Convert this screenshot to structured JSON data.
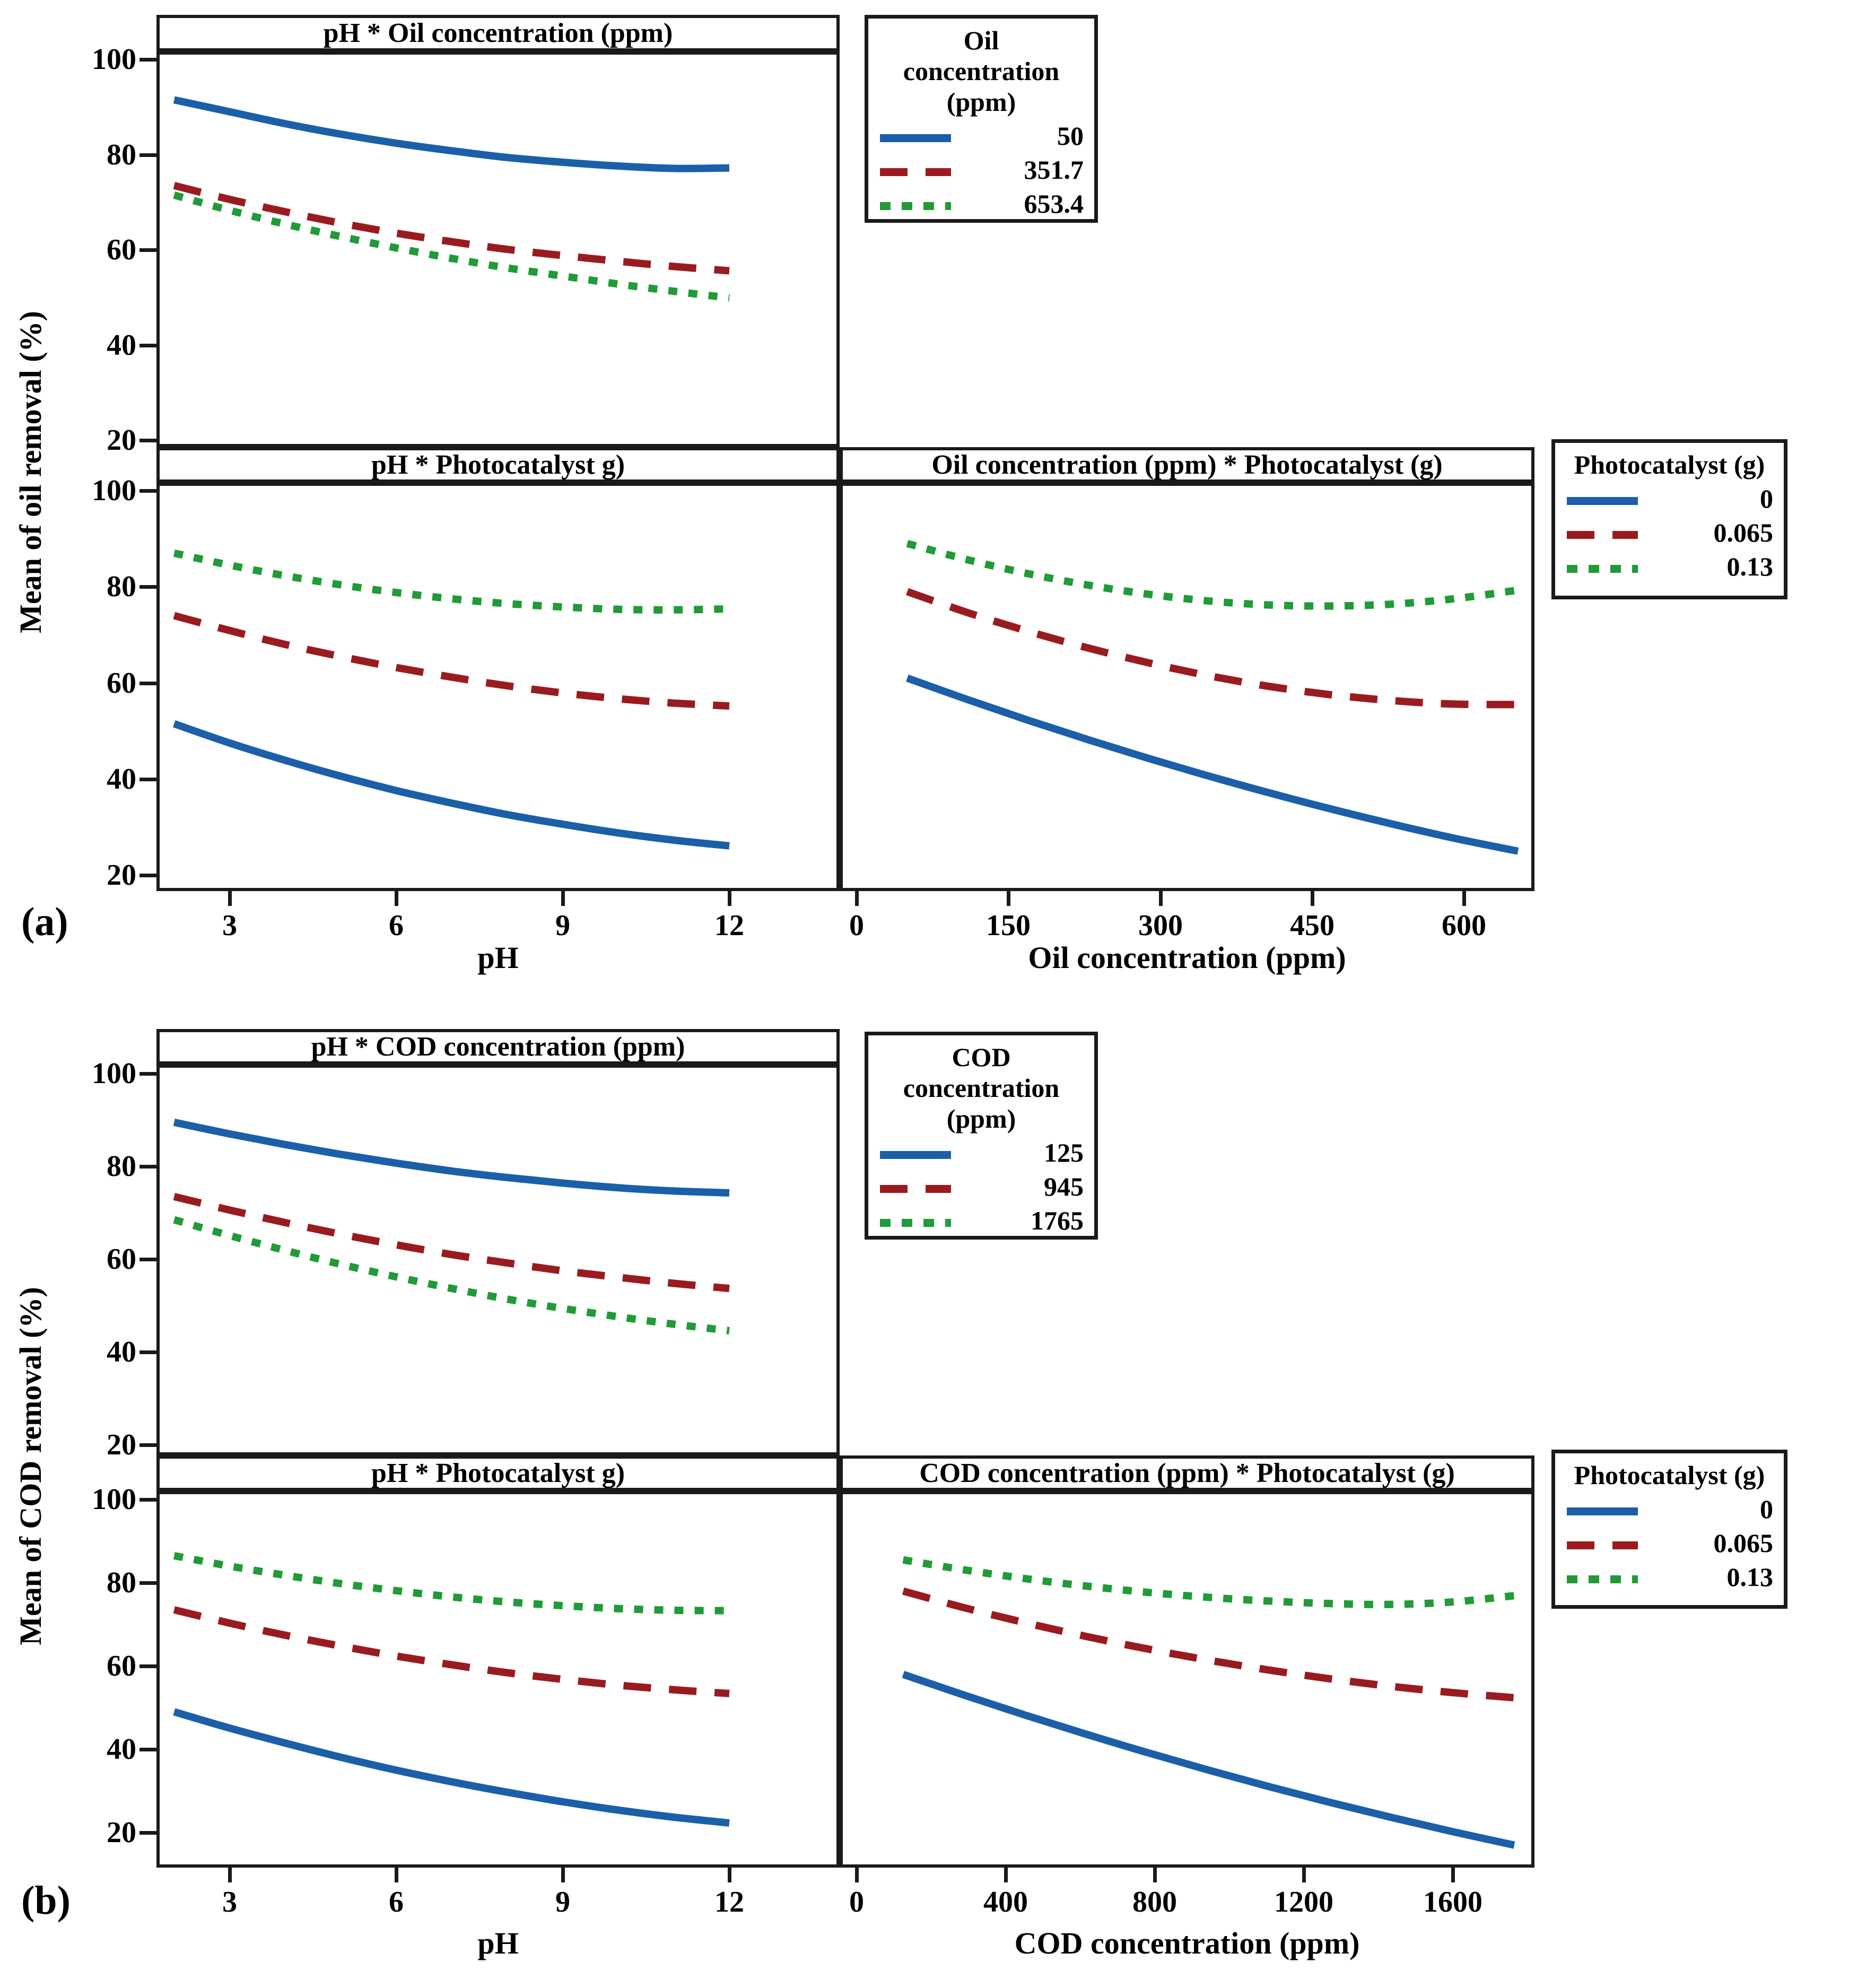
{
  "figures": {
    "a": {
      "label": "(a)",
      "y_label": "Mean of oil removal (%)",
      "x_label_left": "pH",
      "x_label_right": "Oil concentration (ppm)",
      "panel_titles": {
        "top_left": "pH * Oil concentration (ppm)",
        "bottom_left": "pH * Photocatalyst g)",
        "bottom_right": "Oil concentration (ppm) * Photocatalyst (g)"
      },
      "legend_concentration": {
        "title_lines": [
          "Oil",
          "concentration",
          "(ppm)"
        ],
        "entries": [
          "50",
          "351.7",
          "653.4"
        ]
      },
      "legend_photocatalyst": {
        "title": "Photocatalyst (g)",
        "entries": [
          "0",
          "0.065",
          "0.13"
        ]
      }
    },
    "b": {
      "label": "(b)",
      "y_label": "Mean of COD removal (%)",
      "x_label_left": "pH",
      "x_label_right": "COD concentration (ppm)",
      "panel_titles": {
        "top_left": "pH * COD concentration (ppm)",
        "bottom_left": "pH * Photocatalyst g)",
        "bottom_right": "COD concentration (ppm) * Photocatalyst (g)"
      },
      "legend_concentration": {
        "title_lines": [
          "COD",
          "concentration",
          "(ppm)"
        ],
        "entries": [
          "125",
          "945",
          "1765"
        ]
      },
      "legend_photocatalyst": {
        "title": "Photocatalyst (g)",
        "entries": [
          "0",
          "0.065",
          "0.13"
        ]
      }
    }
  },
  "styles": {
    "colors": {
      "blue": "#1b5fa8",
      "red": "#9a1b1f",
      "green": "#219a38"
    },
    "axis_color": "#1a1a1a",
    "background": "#ffffff"
  },
  "chart_data": [
    {
      "id": "a1",
      "figure": "a",
      "position": "top-left",
      "type": "line",
      "title": "pH * Oil concentration (ppm)",
      "xlabel": "pH",
      "ylabel": "Mean of oil removal (%)",
      "legend_title": "Oil concentration (ppm)",
      "grid": false,
      "x_ticks": [
        3,
        6,
        9,
        12
      ],
      "y_ticks": [
        100,
        80,
        60,
        40,
        20
      ],
      "xlim": [
        2,
        12
      ],
      "ylim": [
        20,
        100
      ],
      "x": [
        2,
        3,
        4,
        5,
        6,
        7,
        8,
        9,
        10,
        11,
        12
      ],
      "series": [
        {
          "name": "50",
          "color_key": "blue",
          "style": "solid",
          "values": [
            91.5,
            89,
            86.5,
            84.3,
            82.4,
            80.8,
            79.4,
            78.4,
            77.6,
            77.1,
            77.2
          ]
        },
        {
          "name": "351.7",
          "color_key": "red",
          "style": "dash",
          "values": [
            73.5,
            70.6,
            68,
            65.6,
            63.5,
            61.7,
            60.1,
            58.8,
            57.6,
            56.5,
            55.6
          ]
        },
        {
          "name": "653.4",
          "color_key": "green",
          "style": "dot",
          "values": [
            71.5,
            68.3,
            65.4,
            62.8,
            60.4,
            58.2,
            56.2,
            54.5,
            52.8,
            51.3,
            49.9
          ]
        }
      ]
    },
    {
      "id": "a2",
      "figure": "a",
      "position": "bottom-left",
      "type": "line",
      "title": "pH * Photocatalyst g)",
      "xlabel": "pH",
      "ylabel": "Mean of oil removal (%)",
      "legend_title": "Photocatalyst (g)",
      "grid": false,
      "x_ticks": [
        3,
        6,
        9,
        12
      ],
      "y_ticks": [
        100,
        80,
        60,
        40,
        20
      ],
      "xlim": [
        2,
        12
      ],
      "ylim": [
        20,
        100
      ],
      "x": [
        2,
        3,
        4,
        5,
        6,
        7,
        8,
        9,
        10,
        11,
        12
      ],
      "series": [
        {
          "name": "0",
          "color_key": "blue",
          "style": "solid",
          "values": [
            51.5,
            47.5,
            43.9,
            40.6,
            37.6,
            35,
            32.6,
            30.6,
            28.8,
            27.3,
            26.1
          ]
        },
        {
          "name": "0.065",
          "color_key": "red",
          "style": "dash",
          "values": [
            74,
            70.9,
            68,
            65.5,
            63.2,
            61.2,
            59.4,
            57.9,
            56.7,
            55.8,
            55.2
          ]
        },
        {
          "name": "0.13",
          "color_key": "green",
          "style": "dot",
          "values": [
            87,
            84.5,
            82.3,
            80.4,
            78.8,
            77.5,
            76.5,
            75.8,
            75.3,
            75.2,
            75.4
          ]
        }
      ]
    },
    {
      "id": "a3",
      "figure": "a",
      "position": "bottom-right",
      "type": "line",
      "title": "Oil concentration (ppm) * Photocatalyst (g)",
      "xlabel": "Oil concentration (ppm)",
      "ylabel": "Mean of oil removal (%)",
      "legend_title": "Photocatalyst (g)",
      "grid": false,
      "x_ticks": [
        0,
        150,
        300,
        450,
        600
      ],
      "y_ticks": [
        100,
        80,
        60,
        40,
        20
      ],
      "xlim": [
        50,
        653.4
      ],
      "ylim": [
        20,
        100
      ],
      "x": [
        50,
        110,
        170,
        230,
        290,
        350,
        410,
        470,
        530,
        590,
        653.4
      ],
      "series": [
        {
          "name": "0",
          "color_key": "blue",
          "style": "solid",
          "values": [
            61,
            56.5,
            52.2,
            48.1,
            44.2,
            40.5,
            37,
            33.7,
            30.6,
            27.7,
            25
          ]
        },
        {
          "name": "0.065",
          "color_key": "red",
          "style": "dash",
          "values": [
            79,
            74.6,
            70.7,
            67.2,
            64.1,
            61.4,
            59.2,
            57.5,
            56.3,
            55.6,
            55.5
          ]
        },
        {
          "name": "0.13",
          "color_key": "green",
          "style": "dot",
          "values": [
            89,
            85.6,
            82.7,
            80.3,
            78.4,
            77,
            76.2,
            76,
            76.4,
            77.5,
            79.3
          ]
        }
      ]
    },
    {
      "id": "b1",
      "figure": "b",
      "position": "top-left",
      "type": "line",
      "title": "pH * COD concentration (ppm)",
      "xlabel": "pH",
      "ylabel": "Mean of COD removal (%)",
      "legend_title": "COD concentration (ppm)",
      "grid": false,
      "x_ticks": [
        3,
        6,
        9,
        12
      ],
      "y_ticks": [
        100,
        80,
        60,
        40,
        20
      ],
      "xlim": [
        2,
        12
      ],
      "ylim": [
        20,
        100
      ],
      "x": [
        2,
        3,
        4,
        5,
        6,
        7,
        8,
        9,
        10,
        11,
        12
      ],
      "series": [
        {
          "name": "125",
          "color_key": "blue",
          "style": "solid",
          "values": [
            89.5,
            87,
            84.7,
            82.6,
            80.7,
            79,
            77.6,
            76.4,
            75.4,
            74.7,
            74.3
          ]
        },
        {
          "name": "945",
          "color_key": "red",
          "style": "dash",
          "values": [
            73.5,
            70.6,
            67.9,
            65.4,
            63.1,
            61,
            59.2,
            57.5,
            56.1,
            54.8,
            53.7
          ]
        },
        {
          "name": "1765",
          "color_key": "green",
          "style": "dot",
          "values": [
            68.5,
            65.1,
            61.9,
            58.9,
            56.2,
            53.7,
            51.4,
            49.4,
            47.6,
            46,
            44.6
          ]
        }
      ]
    },
    {
      "id": "b2",
      "figure": "b",
      "position": "bottom-left",
      "type": "line",
      "title": "pH * Photocatalyst g)",
      "xlabel": "pH",
      "ylabel": "Mean of COD removal (%)",
      "legend_title": "Photocatalyst (g)",
      "grid": false,
      "x_ticks": [
        3,
        6,
        9,
        12
      ],
      "y_ticks": [
        100,
        80,
        60,
        40,
        20
      ],
      "xlim": [
        2,
        12
      ],
      "ylim": [
        20,
        100
      ],
      "x": [
        2,
        3,
        4,
        5,
        6,
        7,
        8,
        9,
        10,
        11,
        12
      ],
      "series": [
        {
          "name": "0",
          "color_key": "blue",
          "style": "solid",
          "values": [
            49,
            45.1,
            41.5,
            38.1,
            35,
            32.2,
            29.7,
            27.4,
            25.4,
            23.7,
            22.3
          ]
        },
        {
          "name": "0.065",
          "color_key": "red",
          "style": "dash",
          "values": [
            73.5,
            70.3,
            67.4,
            64.8,
            62.4,
            60.3,
            58.4,
            56.8,
            55.4,
            54.3,
            53.4
          ]
        },
        {
          "name": "0.13",
          "color_key": "green",
          "style": "dot",
          "values": [
            86.5,
            84,
            81.8,
            79.8,
            78.1,
            76.6,
            75.4,
            74.5,
            73.8,
            73.4,
            73.3
          ]
        }
      ]
    },
    {
      "id": "b3",
      "figure": "b",
      "position": "bottom-right",
      "type": "line",
      "title": "COD concentration (ppm) * Photocatalyst (g)",
      "xlabel": "COD concentration (ppm)",
      "ylabel": "Mean of COD removal (%)",
      "legend_title": "Photocatalyst (g)",
      "grid": false,
      "x_ticks": [
        0,
        400,
        800,
        1200,
        1600
      ],
      "y_ticks": [
        100,
        80,
        60,
        40,
        20
      ],
      "xlim": [
        125,
        1765
      ],
      "ylim": [
        20,
        100
      ],
      "x": [
        125,
        289,
        453,
        617,
        781,
        945,
        1109,
        1273,
        1437,
        1601,
        1765
      ],
      "series": [
        {
          "name": "0",
          "color_key": "blue",
          "style": "solid",
          "values": [
            58,
            53,
            48.2,
            43.6,
            39.2,
            35,
            31,
            27.2,
            23.6,
            20.2,
            17
          ]
        },
        {
          "name": "0.065",
          "color_key": "red",
          "style": "dash",
          "values": [
            78,
            74,
            70.4,
            67.1,
            64.1,
            61.4,
            59,
            56.9,
            55.1,
            53.6,
            52.4
          ]
        },
        {
          "name": "0.13",
          "color_key": "green",
          "style": "dot",
          "values": [
            85.5,
            83.1,
            81,
            79.2,
            77.7,
            76.5,
            75.6,
            75,
            74.8,
            75.4,
            76.9
          ]
        }
      ]
    }
  ]
}
